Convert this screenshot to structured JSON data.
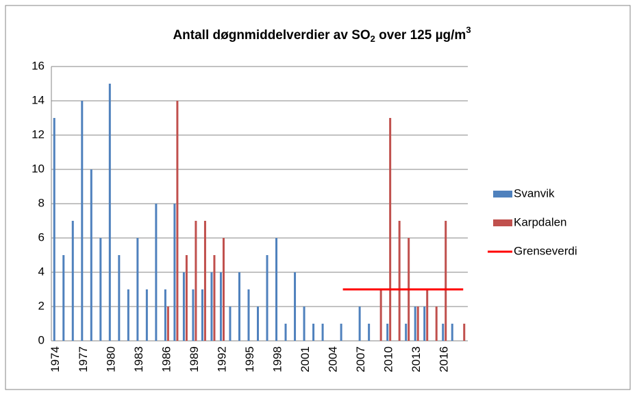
{
  "chart_data": {
    "type": "bar",
    "title": [
      "Antall døgnmiddelverdier av SO",
      "2",
      " over 125 µg/m",
      "3"
    ],
    "categories": [
      "1974",
      null,
      null,
      "1977",
      null,
      null,
      "1980",
      null,
      null,
      "1983",
      null,
      null,
      "1986",
      null,
      null,
      "1989",
      null,
      null,
      "1992",
      null,
      null,
      "1995",
      null,
      null,
      "1998",
      null,
      null,
      "2001",
      null,
      null,
      "2004",
      null,
      null,
      "2007",
      null,
      null,
      "2010",
      null,
      null,
      "2013",
      null,
      null,
      "2016",
      null,
      null
    ],
    "series": [
      {
        "name": "Svanvik",
        "color": "#4f81bd",
        "type": "bar",
        "values": [
          13,
          5,
          7,
          14,
          10,
          6,
          15,
          5,
          3,
          6,
          3,
          8,
          3,
          8,
          4,
          3,
          3,
          4,
          4,
          2,
          4,
          3,
          2,
          5,
          6,
          1,
          4,
          2,
          1,
          1,
          null,
          1,
          null,
          2,
          1,
          null,
          1,
          null,
          1,
          2,
          2,
          null,
          1,
          1,
          null
        ]
      },
      {
        "name": "Karpdalen",
        "color": "#c0504d",
        "type": "bar",
        "values": [
          null,
          null,
          null,
          null,
          null,
          null,
          null,
          null,
          null,
          null,
          null,
          null,
          2,
          14,
          5,
          7,
          7,
          5,
          6,
          null,
          null,
          null,
          null,
          null,
          null,
          null,
          null,
          null,
          null,
          null,
          null,
          null,
          null,
          null,
          null,
          3,
          13,
          7,
          6,
          2,
          3,
          2,
          7,
          null,
          1
        ]
      },
      {
        "name": "Grenseverdi",
        "color": "#ff0000",
        "type": "line",
        "values": [
          null,
          null,
          null,
          null,
          null,
          null,
          null,
          null,
          null,
          null,
          null,
          null,
          null,
          null,
          null,
          null,
          null,
          null,
          null,
          null,
          null,
          null,
          null,
          null,
          null,
          null,
          null,
          null,
          null,
          null,
          null,
          3,
          3,
          3,
          3,
          3,
          3,
          3,
          3,
          3,
          3,
          3,
          3,
          3,
          3
        ]
      }
    ],
    "ylim": [
      0,
      16
    ],
    "yticks": [
      0,
      2,
      4,
      6,
      8,
      10,
      12,
      14,
      16
    ],
    "grid": true,
    "legend": "right"
  }
}
